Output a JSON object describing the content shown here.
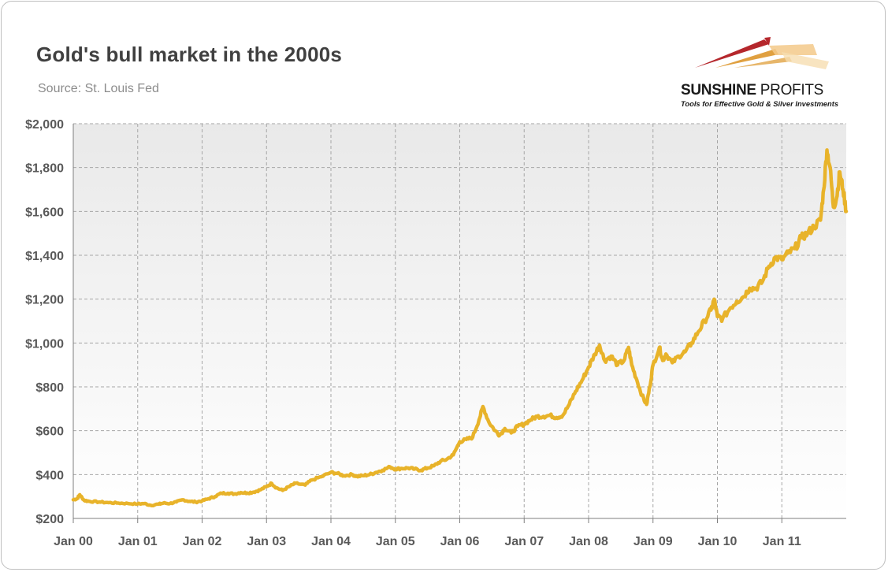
{
  "title": "Gold's bull market in the 2000s",
  "subtitle": "Source: St. Louis Fed",
  "logo": {
    "name_bold": "SUNSHINE",
    "name_rest": " PROFITS",
    "tagline": "Tools for Effective Gold & Silver Investments"
  },
  "chart_data": {
    "type": "line",
    "title": "Gold's bull market in the 2000s",
    "subtitle": "Source: St. Louis Fed",
    "xlabel": "",
    "ylabel": "",
    "x_unit": "years since Jan 2000",
    "xlim": [
      0,
      12
    ],
    "ylim": [
      200,
      2000
    ],
    "y_ticks": [
      200,
      400,
      600,
      800,
      1000,
      1200,
      1400,
      1600,
      1800,
      2000
    ],
    "y_tick_labels": [
      "$200",
      "$400",
      "$600",
      "$800",
      "$1,000",
      "$1,200",
      "$1,400",
      "$1,600",
      "$1,800",
      "$2,000"
    ],
    "x_ticks": [
      0,
      1,
      2,
      3,
      4,
      5,
      6,
      7,
      8,
      9,
      10,
      11
    ],
    "x_tick_labels": [
      "Jan 00",
      "Jan 01",
      "Jan 02",
      "Jan 03",
      "Jan 04",
      "Jan 05",
      "Jan 06",
      "Jan 07",
      "Jan 08",
      "Jan 09",
      "Jan 10",
      "Jan 11"
    ],
    "grid": true,
    "legend": "none",
    "series": [
      {
        "color": "#E8B32A",
        "x": [
          0,
          0.06,
          0.1,
          0.17,
          0.25,
          0.4,
          0.55,
          0.7,
          0.85,
          1.0,
          1.1,
          1.2,
          1.33,
          1.4,
          1.5,
          1.6,
          1.7,
          1.8,
          1.9,
          2.0,
          2.1,
          2.2,
          2.3,
          2.4,
          2.5,
          2.6,
          2.7,
          2.8,
          2.9,
          3.0,
          3.08,
          3.15,
          3.25,
          3.35,
          3.45,
          3.6,
          3.7,
          3.85,
          4.0,
          4.1,
          4.2,
          4.33,
          4.4,
          4.5,
          4.6,
          4.7,
          4.8,
          4.92,
          5.0,
          5.1,
          5.2,
          5.3,
          5.4,
          5.5,
          5.6,
          5.7,
          5.8,
          5.9,
          6.0,
          6.1,
          6.2,
          6.3,
          6.36,
          6.45,
          6.55,
          6.62,
          6.7,
          6.8,
          6.9,
          7.0,
          7.1,
          7.2,
          7.3,
          7.4,
          7.5,
          7.6,
          7.7,
          7.8,
          7.9,
          8.0,
          8.1,
          8.17,
          8.25,
          8.35,
          8.45,
          8.55,
          8.62,
          8.67,
          8.75,
          8.83,
          8.9,
          8.95,
          9.0,
          9.1,
          9.15,
          9.2,
          9.3,
          9.4,
          9.5,
          9.6,
          9.7,
          9.8,
          9.9,
          9.95,
          10.0,
          10.08,
          10.2,
          10.3,
          10.4,
          10.5,
          10.6,
          10.7,
          10.8,
          10.9,
          11.0,
          11.1,
          11.2,
          11.3,
          11.4,
          11.5,
          11.6,
          11.65,
          11.7,
          11.75,
          11.8,
          11.85,
          11.9,
          11.95,
          12.0
        ],
        "y": [
          285,
          290,
          308,
          282,
          278,
          275,
          272,
          270,
          268,
          266,
          268,
          260,
          265,
          270,
          268,
          275,
          285,
          278,
          275,
          280,
          290,
          300,
          315,
          315,
          312,
          318,
          316,
          320,
          330,
          345,
          360,
          340,
          328,
          345,
          360,
          352,
          375,
          390,
          410,
          405,
          395,
          400,
          392,
          395,
          400,
          410,
          420,
          435,
          425,
          428,
          430,
          425,
          420,
          430,
          440,
          460,
          470,
          490,
          550,
          560,
          570,
          650,
          710,
          640,
          600,
          580,
          610,
          590,
          620,
          630,
          650,
          665,
          665,
          670,
          660,
          670,
          720,
          780,
          830,
          890,
          950,
          990,
          920,
          940,
          900,
          920,
          980,
          900,
          830,
          760,
          720,
          800,
          900,
          980,
          920,
          950,
          910,
          940,
          960,
          1000,
          1050,
          1100,
          1150,
          1200,
          1120,
          1110,
          1160,
          1190,
          1210,
          1250,
          1250,
          1280,
          1350,
          1390,
          1380,
          1410,
          1430,
          1480,
          1500,
          1530,
          1560,
          1700,
          1880,
          1800,
          1620,
          1660,
          1780,
          1700,
          1600
        ]
      }
    ]
  }
}
